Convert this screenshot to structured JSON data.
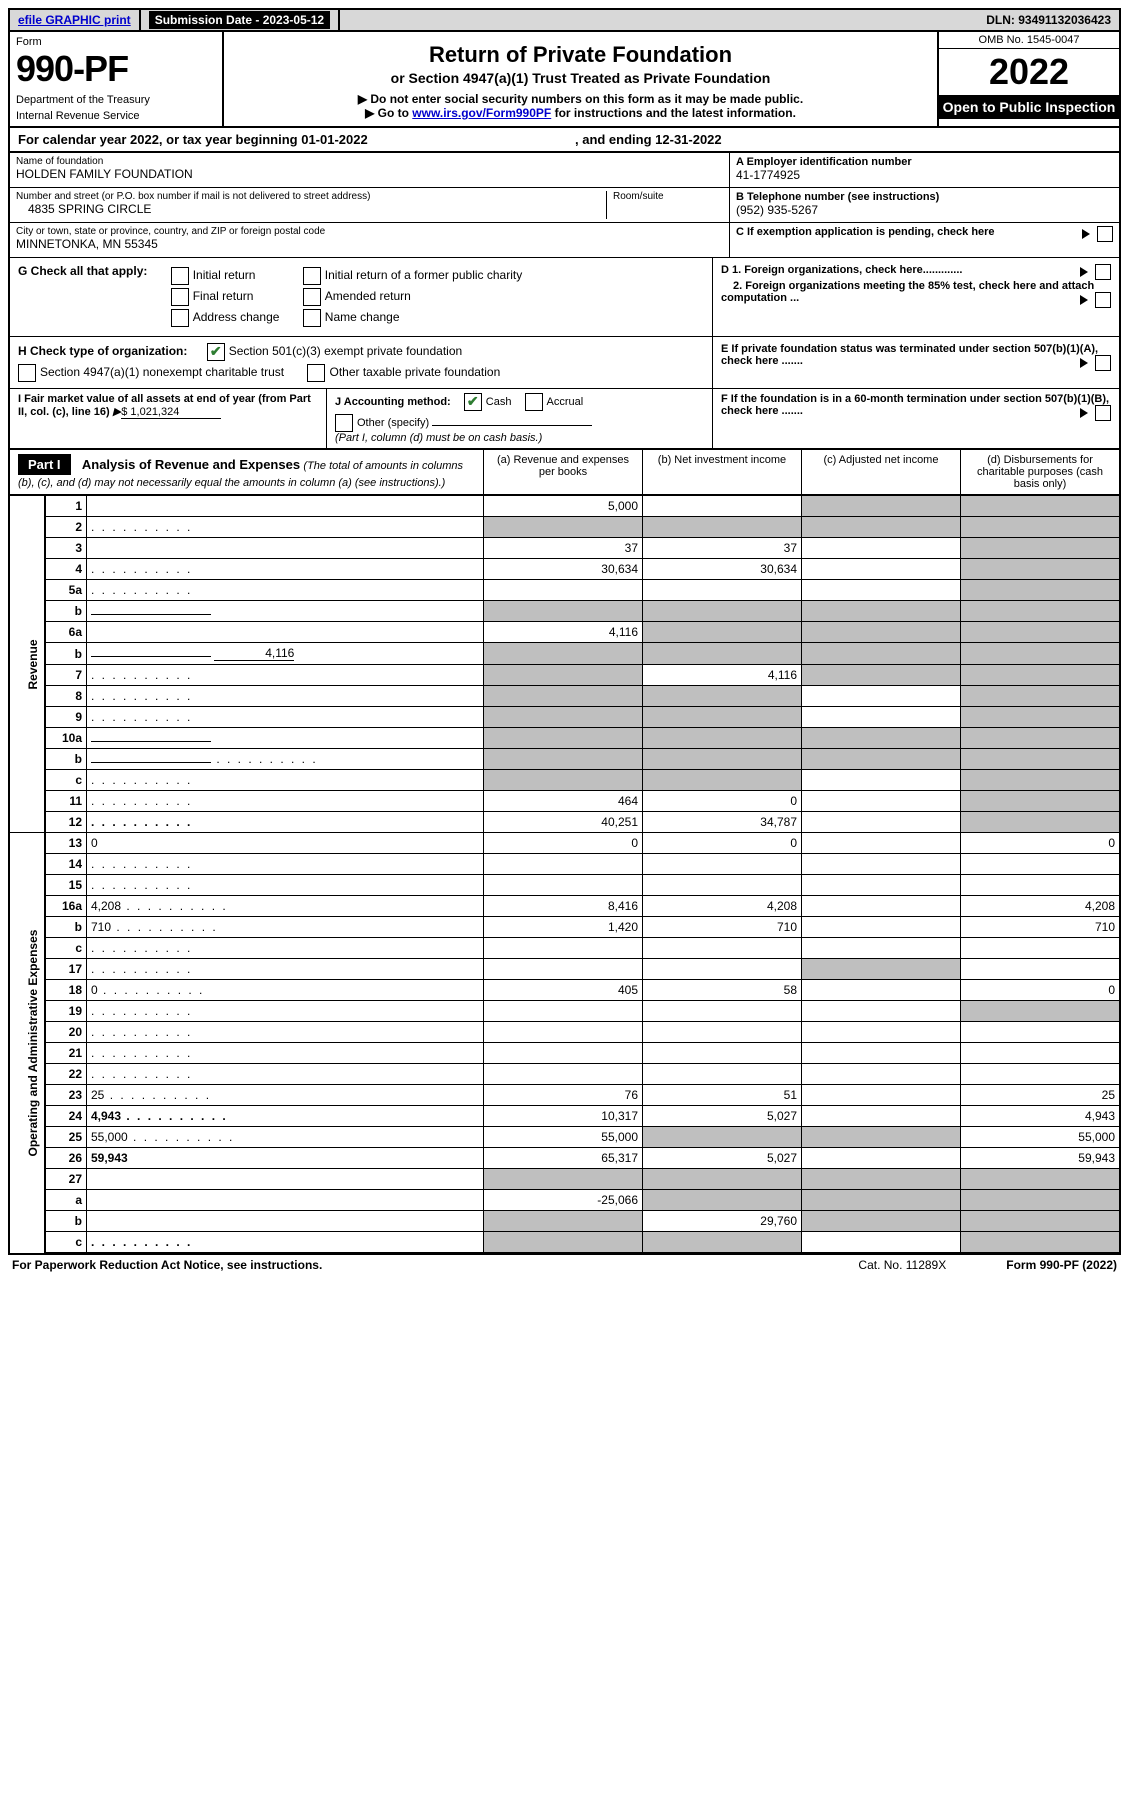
{
  "colors": {
    "black": "#000000",
    "white": "#ffffff",
    "headerGray": "#d8d8d8",
    "shade": "#bfbfbf",
    "link": "#0000cc",
    "check": "#2e7d32"
  },
  "topbar": {
    "efile_label": "efile GRAPHIC print",
    "submission_label": "Submission Date - 2023-05-12",
    "dln_label": "DLN: 93491132036423"
  },
  "header": {
    "form_word": "Form",
    "form_number": "990-PF",
    "dept": "Department of the Treasury",
    "irs": "Internal Revenue Service",
    "title": "Return of Private Foundation",
    "subtitle": "or Section 4947(a)(1) Trust Treated as Private Foundation",
    "directive1": "▶ Do not enter social security numbers on this form as it may be made public.",
    "directive2_pre": "▶ Go to ",
    "directive2_link": "www.irs.gov/Form990PF",
    "directive2_post": " for instructions and the latest information.",
    "omb": "OMB No. 1545-0047",
    "year": "2022",
    "open": "Open to Public Inspection"
  },
  "cal": {
    "line": "For calendar year 2022, or tax year beginning 01-01-2022",
    "ending": ", and ending 12-31-2022"
  },
  "entity": {
    "name_label": "Name of foundation",
    "name": "HOLDEN FAMILY FOUNDATION",
    "addr_label": "Number and street (or P.O. box number if mail is not delivered to street address)",
    "addr": "4835 SPRING CIRCLE",
    "room_label": "Room/suite",
    "city_label": "City or town, state or province, country, and ZIP or foreign postal code",
    "city": "MINNETONKA, MN  55345",
    "a_label": "A Employer identification number",
    "a_val": "41-1774925",
    "b_label": "B Telephone number (see instructions)",
    "b_val": "(952) 935-5267",
    "c_label": "C If exemption application is pending, check here",
    "d1_label": "D 1. Foreign organizations, check here.............",
    "d2_label": "2. Foreign organizations meeting the 85% test, check here and attach computation ...",
    "e_label": "E  If private foundation status was terminated under section 507(b)(1)(A), check here .......",
    "f_label": "F  If the foundation is in a 60-month termination under section 507(b)(1)(B), check here ......."
  },
  "g": {
    "label": "G Check all that apply:",
    "opts": [
      "Initial return",
      "Final return",
      "Address change",
      "Initial return of a former public charity",
      "Amended return",
      "Name change"
    ]
  },
  "h": {
    "label": "H Check type of organization:",
    "opt1": "Section 501(c)(3) exempt private foundation",
    "opt2": "Section 4947(a)(1) nonexempt charitable trust",
    "opt3": "Other taxable private foundation"
  },
  "i": {
    "label": "I Fair market value of all assets at end of year (from Part II, col. (c), line 16)",
    "value": "$  1,021,324"
  },
  "j": {
    "label": "J Accounting method:",
    "cash": "Cash",
    "accrual": "Accrual",
    "other": "Other (specify)",
    "note": "(Part I, column (d) must be on cash basis.)"
  },
  "part1": {
    "banner": "Part I",
    "title": "Analysis of Revenue and Expenses",
    "title_note": "(The total of amounts in columns (b), (c), and (d) may not necessarily equal the amounts in column (a) (see instructions).)",
    "cols": {
      "a": "(a)   Revenue and expenses per books",
      "b": "(b)   Net investment income",
      "c": "(c)   Adjusted net income",
      "d": "(d)   Disbursements for charitable purposes (cash basis only)"
    }
  },
  "sidelabels": {
    "rev": "Revenue",
    "oae": "Operating and Administrative Expenses"
  },
  "rows": [
    {
      "n": "1",
      "d": "",
      "a": "5,000",
      "b": "",
      "c": "",
      "b_sh": false,
      "c_sh": true,
      "d_sh": true
    },
    {
      "n": "2",
      "d": "",
      "a": "",
      "b": "",
      "c": "",
      "a_sh": true,
      "b_sh": true,
      "c_sh": true,
      "d_sh": true,
      "dots": true
    },
    {
      "n": "3",
      "d": "",
      "a": "37",
      "b": "37",
      "c": "",
      "d_sh": true
    },
    {
      "n": "4",
      "d": "",
      "a": "30,634",
      "b": "30,634",
      "c": "",
      "d_sh": true,
      "dots": true
    },
    {
      "n": "5a",
      "d": "",
      "a": "",
      "b": "",
      "c": "",
      "d_sh": true,
      "dots": true
    },
    {
      "n": "b",
      "d": "",
      "a": "",
      "b": "",
      "c": "",
      "a_sh": true,
      "b_sh": true,
      "c_sh": true,
      "d_sh": true,
      "uline": true
    },
    {
      "n": "6a",
      "d": "",
      "a": "4,116",
      "b": "",
      "c": "",
      "b_sh": true,
      "c_sh": true,
      "d_sh": true
    },
    {
      "n": "b",
      "d": "",
      "a": "",
      "b": "",
      "c": "",
      "a_sh": true,
      "b_sh": true,
      "c_sh": true,
      "d_sh": true,
      "inline_val": "4,116",
      "uline": true
    },
    {
      "n": "7",
      "d": "",
      "a": "",
      "b": "4,116",
      "c": "",
      "a_sh": true,
      "c_sh": true,
      "d_sh": true,
      "dots": true
    },
    {
      "n": "8",
      "d": "",
      "a": "",
      "b": "",
      "c": "",
      "a_sh": true,
      "b_sh": true,
      "d_sh": true,
      "dots": true
    },
    {
      "n": "9",
      "d": "",
      "a": "",
      "b": "",
      "c": "",
      "a_sh": true,
      "b_sh": true,
      "d_sh": true,
      "dots": true
    },
    {
      "n": "10a",
      "d": "",
      "a": "",
      "b": "",
      "c": "",
      "a_sh": true,
      "b_sh": true,
      "c_sh": true,
      "d_sh": true,
      "uline": true
    },
    {
      "n": "b",
      "d": "",
      "a": "",
      "b": "",
      "c": "",
      "a_sh": true,
      "b_sh": true,
      "c_sh": true,
      "d_sh": true,
      "uline": true,
      "dots": true
    },
    {
      "n": "c",
      "d": "",
      "a": "",
      "b": "",
      "c": "",
      "a_sh": true,
      "b_sh": true,
      "d_sh": true,
      "dots": true
    },
    {
      "n": "11",
      "d": "",
      "a": "464",
      "b": "0",
      "c": "",
      "d_sh": true,
      "dots": true
    },
    {
      "n": "12",
      "d": "",
      "a": "40,251",
      "b": "34,787",
      "c": "",
      "d_sh": true,
      "bold": true,
      "dots": true
    },
    {
      "n": "13",
      "d": "0",
      "a": "0",
      "b": "0",
      "c": ""
    },
    {
      "n": "14",
      "d": "",
      "a": "",
      "b": "",
      "c": "",
      "dots": true
    },
    {
      "n": "15",
      "d": "",
      "a": "",
      "b": "",
      "c": "",
      "dots": true
    },
    {
      "n": "16a",
      "d": "4,208",
      "a": "8,416",
      "b": "4,208",
      "c": "",
      "dots": true
    },
    {
      "n": "b",
      "d": "710",
      "a": "1,420",
      "b": "710",
      "c": "",
      "dots": true
    },
    {
      "n": "c",
      "d": "",
      "a": "",
      "b": "",
      "c": "",
      "dots": true
    },
    {
      "n": "17",
      "d": "",
      "a": "",
      "b": "",
      "c": "",
      "c_sh": true,
      "dots": true
    },
    {
      "n": "18",
      "d": "0",
      "a": "405",
      "b": "58",
      "c": "",
      "dots": true
    },
    {
      "n": "19",
      "d": "",
      "a": "",
      "b": "",
      "c": "",
      "d_sh": true,
      "dots": true
    },
    {
      "n": "20",
      "d": "",
      "a": "",
      "b": "",
      "c": "",
      "dots": true
    },
    {
      "n": "21",
      "d": "",
      "a": "",
      "b": "",
      "c": "",
      "dots": true
    },
    {
      "n": "22",
      "d": "",
      "a": "",
      "b": "",
      "c": "",
      "dots": true
    },
    {
      "n": "23",
      "d": "25",
      "a": "76",
      "b": "51",
      "c": "",
      "dots": true
    },
    {
      "n": "24",
      "d": "4,943",
      "a": "10,317",
      "b": "5,027",
      "c": "",
      "bold": true,
      "dots": true
    },
    {
      "n": "25",
      "d": "55,000",
      "a": "55,000",
      "b": "",
      "c": "",
      "b_sh": true,
      "c_sh": true,
      "dots": true
    },
    {
      "n": "26",
      "d": "59,943",
      "a": "65,317",
      "b": "5,027",
      "c": "",
      "bold": true
    },
    {
      "n": "27",
      "d": "",
      "a": "",
      "b": "",
      "c": "",
      "a_sh": true,
      "b_sh": true,
      "c_sh": true,
      "d_sh": true
    },
    {
      "n": "a",
      "d": "",
      "a": "-25,066",
      "b": "",
      "c": "",
      "b_sh": true,
      "c_sh": true,
      "d_sh": true,
      "bold": true
    },
    {
      "n": "b",
      "d": "",
      "a": "",
      "b": "29,760",
      "c": "",
      "a_sh": true,
      "c_sh": true,
      "d_sh": true,
      "bold": true
    },
    {
      "n": "c",
      "d": "",
      "a": "",
      "b": "",
      "c": "",
      "a_sh": true,
      "b_sh": true,
      "d_sh": true,
      "bold": true,
      "dots": true
    }
  ],
  "footer": {
    "left": "For Paperwork Reduction Act Notice, see instructions.",
    "mid": "Cat. No. 11289X",
    "right": "Form 990-PF (2022)"
  }
}
